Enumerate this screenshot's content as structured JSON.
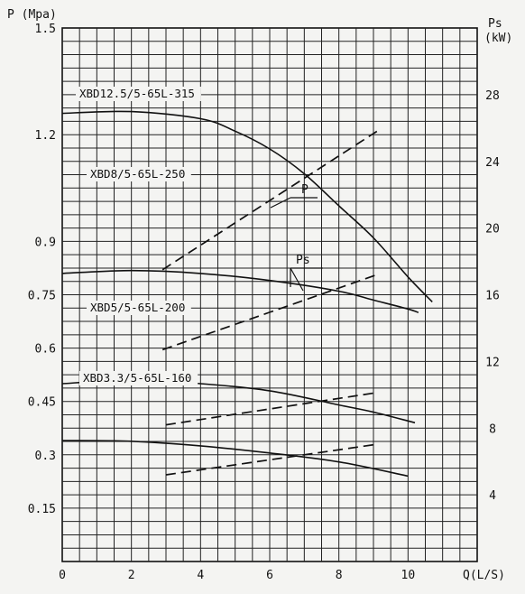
{
  "chart_data": {
    "type": "line",
    "left_axis_label": "P (Mpa)",
    "right_axis_label_line1": "Ps",
    "right_axis_label_line2": "(kW)",
    "x_axis_label": "Q(L/S)",
    "xlim": [
      0,
      12
    ],
    "ylim_left": [
      0,
      1.5
    ],
    "ylim_right": [
      0,
      32
    ],
    "grid": true,
    "x_ticks": [
      "0",
      "2",
      "4",
      "6",
      "8",
      "10"
    ],
    "left_ticks": [
      "0.15",
      "0.3",
      "0.45",
      "0.6",
      "0.75",
      "0.9",
      "1.2",
      "1.5"
    ],
    "right_ticks": [
      "4",
      "8",
      "12",
      "16",
      "20",
      "24",
      "28"
    ],
    "annotations": {
      "pressure": "P",
      "power": "Ps"
    },
    "pressure_curves": [
      {
        "name": "XBD12.5/5-65L-315",
        "points": [
          [
            0,
            1.26
          ],
          [
            2,
            1.265
          ],
          [
            4,
            1.245
          ],
          [
            5,
            1.21
          ],
          [
            6,
            1.16
          ],
          [
            7,
            1.09
          ],
          [
            8,
            1.0
          ],
          [
            9,
            0.91
          ],
          [
            10,
            0.8
          ],
          [
            10.7,
            0.73
          ]
        ]
      },
      {
        "name": "XBD8/5-65L-250",
        "points": [
          [
            0,
            0.81
          ],
          [
            2,
            0.818
          ],
          [
            4,
            0.81
          ],
          [
            6,
            0.79
          ],
          [
            8,
            0.76
          ],
          [
            9,
            0.735
          ],
          [
            10,
            0.71
          ],
          [
            10.3,
            0.7
          ]
        ]
      },
      {
        "name": "XBD5/5-65L-200",
        "points": [
          [
            0,
            0.5
          ],
          [
            2,
            0.51
          ],
          [
            4,
            0.5
          ],
          [
            6,
            0.48
          ],
          [
            8,
            0.44
          ],
          [
            9,
            0.42
          ],
          [
            10.2,
            0.39
          ]
        ]
      },
      {
        "name": "XBD3.3/5-65L-160",
        "points": [
          [
            0,
            0.34
          ],
          [
            2,
            0.338
          ],
          [
            4,
            0.325
          ],
          [
            6,
            0.305
          ],
          [
            8,
            0.28
          ],
          [
            10,
            0.24
          ]
        ]
      }
    ],
    "power_curves": [
      {
        "points": [
          [
            2.9,
            17.5
          ],
          [
            9.1,
            25.8
          ]
        ]
      },
      {
        "points": [
          [
            2.9,
            12.7
          ],
          [
            9.1,
            17.2
          ]
        ]
      },
      {
        "points": [
          [
            3.0,
            8.2
          ],
          [
            9.0,
            10.1
          ]
        ]
      },
      {
        "points": [
          [
            3.0,
            5.2
          ],
          [
            9.0,
            7.0
          ]
        ]
      }
    ]
  }
}
